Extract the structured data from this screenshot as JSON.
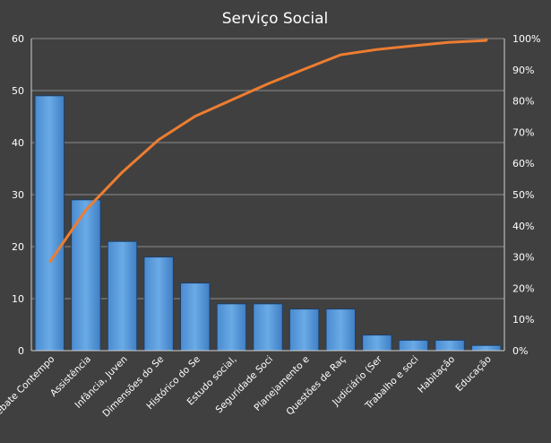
{
  "chart_data": {
    "type": "bar",
    "title": "Serviço Social",
    "categories": [
      "Debate Contempo",
      "Assistência",
      "Infância, Juven",
      "Dimensões do Se",
      "Histórico do Se",
      "Estudo social,",
      "Seguridade Soci",
      "Planejamento e",
      "Questões de Raç",
      "Judiciário (Ser",
      "Trabalho e soci",
      "Habitação",
      "Educação"
    ],
    "series": [
      {
        "type": "bar",
        "values": [
          49,
          29,
          21,
          18,
          13,
          9,
          9,
          8,
          8,
          3,
          2,
          2,
          1
        ],
        "axis": "left"
      },
      {
        "type": "line",
        "values": [
          28.3,
          45.1,
          57.2,
          67.6,
          75.1,
          80.3,
          85.5,
          90.2,
          94.8,
          96.5,
          97.7,
          98.8,
          99.4
        ],
        "axis": "right",
        "unit": "%"
      }
    ],
    "y_left": {
      "min": 0,
      "max": 60,
      "ticks": [
        "0",
        "10",
        "20",
        "30",
        "40",
        "50",
        "60"
      ]
    },
    "y_right": {
      "min": 0,
      "max": 100,
      "ticks": [
        "0%",
        "10%",
        "20%",
        "30%",
        "40%",
        "50%",
        "60%",
        "70%",
        "80%",
        "90%",
        "100%"
      ]
    },
    "grid": true,
    "legend": "none",
    "colors": {
      "background": "#404040",
      "bar_fill": "#5b9bd5",
      "bar_fill_top": "#6fa8dc",
      "bar_border": "#1f3f66",
      "line": "#ed7d31",
      "gridline": "#8c8c8c",
      "axis": "#d0d0d0",
      "text": "#ffffff"
    }
  }
}
